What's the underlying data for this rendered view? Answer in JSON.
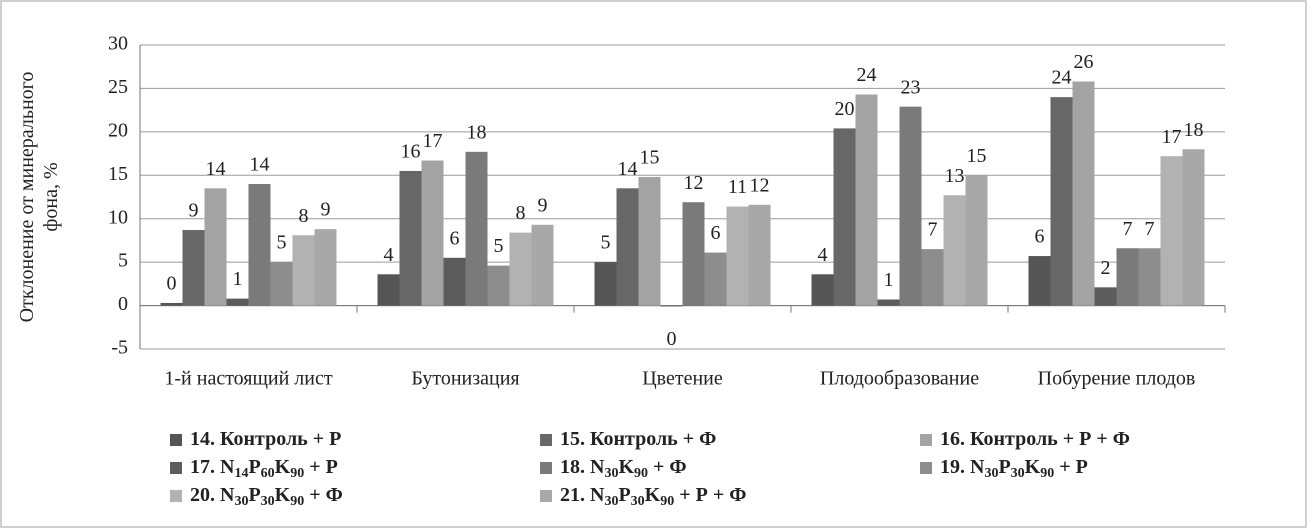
{
  "chart_data": {
    "type": "bar",
    "y_label": [
      "Отклонение от минерального",
      "фона, %"
    ],
    "categories": [
      "1-й настоящий лист",
      "Бутонизация",
      "Цветение",
      "Плодообразование",
      "Побурение плодов"
    ],
    "ylim": [
      -5,
      30
    ],
    "yticks": [
      -5,
      0,
      5,
      10,
      15,
      20,
      25,
      30
    ],
    "grid": true,
    "legend": "bottom",
    "series": [
      {
        "name": "14. Контроль + Р",
        "color": "#555555",
        "values": [
          0.3,
          3.6,
          5.0,
          3.6,
          5.7
        ],
        "value_labels": [
          "0",
          "4",
          "5",
          "4",
          "6"
        ]
      },
      {
        "name": "15. Контроль + Ф",
        "color": "#676767",
        "values": [
          8.7,
          15.5,
          13.5,
          20.4,
          24.0
        ],
        "value_labels": [
          "9",
          "16",
          "14",
          "20",
          "24"
        ]
      },
      {
        "name": "16. Контроль + Р + Ф",
        "color": "#a3a3a3",
        "values": [
          13.5,
          16.7,
          14.8,
          24.3,
          25.8
        ],
        "value_labels": [
          "14",
          "17",
          "15",
          "24",
          "26"
        ]
      },
      {
        "name": "17. N14P60K90 + Р",
        "color": "#5c5c5c",
        "values": [
          0.8,
          5.5,
          -0.1,
          0.7,
          2.1
        ],
        "value_labels": [
          "1",
          "6",
          "0",
          "1",
          "2"
        ]
      },
      {
        "name": "18. N30K90 + Ф",
        "color": "#7a7a7a",
        "values": [
          14.0,
          17.7,
          11.9,
          22.9,
          6.6
        ],
        "value_labels": [
          "14",
          "18",
          "12",
          "23",
          "7"
        ]
      },
      {
        "name": "19. N30P30K90 + Р",
        "color": "#8d8d8d",
        "values": [
          5.0,
          4.6,
          6.1,
          6.5,
          6.6
        ],
        "value_labels": [
          "5",
          "5",
          "6",
          "7",
          "7"
        ]
      },
      {
        "name": "20. N30P30K90 + Ф",
        "color": "#b2b2b2",
        "values": [
          8.1,
          8.4,
          11.4,
          12.7,
          17.2
        ],
        "value_labels": [
          "8",
          "8",
          "11",
          "13",
          "17"
        ]
      },
      {
        "name": "21. N30P30K90 + Р + Ф",
        "color": "#a8a8a8",
        "values": [
          8.8,
          9.3,
          11.6,
          15.0,
          18.0
        ],
        "value_labels": [
          "9",
          "9",
          "12",
          "15",
          "18"
        ]
      }
    ]
  }
}
